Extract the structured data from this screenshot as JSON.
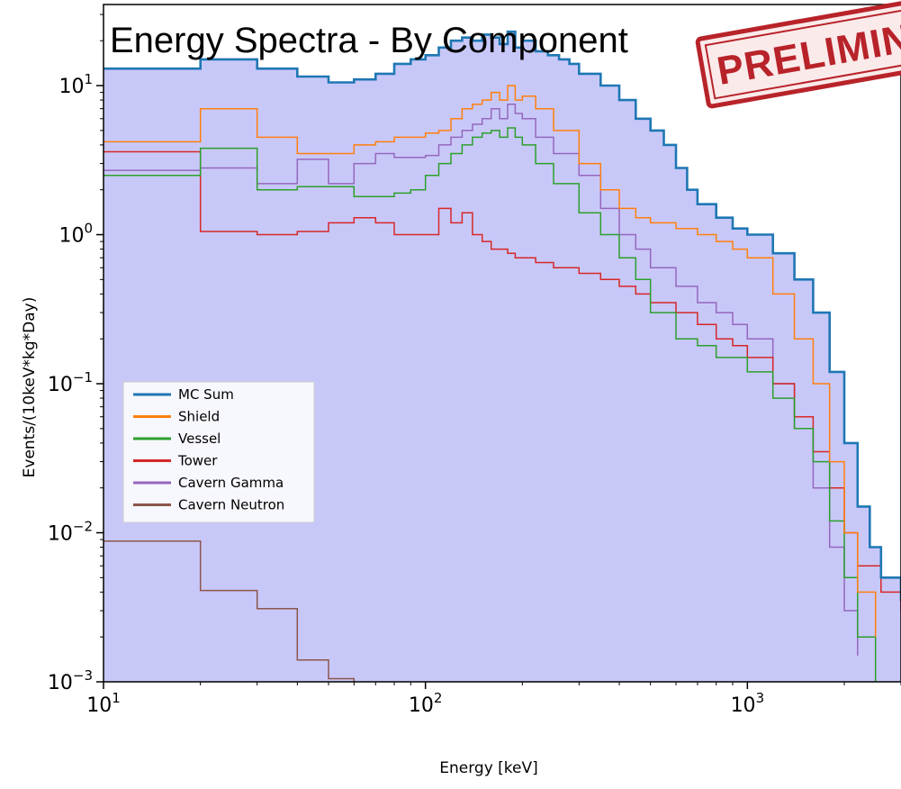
{
  "chart_data": {
    "type": "line",
    "title": "Energy Spectra - By Component",
    "stamp": "PRELIMINARY",
    "xlabel": "Energy [keV]",
    "ylabel": "Events/(10keV*kg*Day)",
    "x_scale": "log",
    "y_scale": "log",
    "xlim": [
      10,
      3000
    ],
    "ylim": [
      0.001,
      35
    ],
    "x_ticks": [
      {
        "value": 10,
        "base": "10",
        "exp": "1"
      },
      {
        "value": 100,
        "base": "10",
        "exp": "2"
      },
      {
        "value": 1000,
        "base": "10",
        "exp": "3"
      }
    ],
    "y_ticks": [
      {
        "value": 10,
        "base": "10",
        "exp": "1"
      },
      {
        "value": 1,
        "base": "10",
        "exp": "0"
      },
      {
        "value": 0.1,
        "base": "10",
        "exp": "−1"
      },
      {
        "value": 0.01,
        "base": "10",
        "exp": "−2"
      },
      {
        "value": 0.001,
        "base": "10",
        "exp": "−3"
      }
    ],
    "grid": false,
    "legend_position": "center-left",
    "fill_color": "#c8c8f8",
    "series": [
      {
        "name": "MC Sum",
        "color": "#1f77b4",
        "points": [
          [
            10,
            13
          ],
          [
            20,
            15
          ],
          [
            30,
            13
          ],
          [
            40,
            11.5
          ],
          [
            50,
            10.5
          ],
          [
            60,
            11
          ],
          [
            70,
            12
          ],
          [
            80,
            14
          ],
          [
            90,
            15
          ],
          [
            100,
            16
          ],
          [
            110,
            18
          ],
          [
            120,
            20
          ],
          [
            130,
            21
          ],
          [
            140,
            20
          ],
          [
            150,
            22
          ],
          [
            160,
            21
          ],
          [
            170,
            19
          ],
          [
            180,
            23
          ],
          [
            190,
            18
          ],
          [
            200,
            20
          ],
          [
            220,
            17
          ],
          [
            240,
            16
          ],
          [
            260,
            15
          ],
          [
            280,
            14
          ],
          [
            300,
            12
          ],
          [
            350,
            10
          ],
          [
            400,
            8
          ],
          [
            450,
            6
          ],
          [
            500,
            5
          ],
          [
            550,
            4
          ],
          [
            600,
            2.8
          ],
          [
            650,
            2
          ],
          [
            700,
            1.6
          ],
          [
            800,
            1.3
          ],
          [
            900,
            1.1
          ],
          [
            1000,
            1.0
          ],
          [
            1200,
            0.75
          ],
          [
            1400,
            0.5
          ],
          [
            1600,
            0.3
          ],
          [
            1800,
            0.12
          ],
          [
            2000,
            0.04
          ],
          [
            2200,
            0.015
          ],
          [
            2400,
            0.008
          ],
          [
            2600,
            0.005
          ],
          [
            3000,
            0.0035
          ]
        ]
      },
      {
        "name": "Shield",
        "color": "#ff7f0e",
        "points": [
          [
            10,
            4.2
          ],
          [
            20,
            7
          ],
          [
            30,
            4.5
          ],
          [
            40,
            3.5
          ],
          [
            50,
            3.5
          ],
          [
            60,
            4
          ],
          [
            70,
            4.2
          ],
          [
            80,
            4.5
          ],
          [
            90,
            4.5
          ],
          [
            100,
            4.8
          ],
          [
            110,
            5
          ],
          [
            120,
            6
          ],
          [
            130,
            7
          ],
          [
            140,
            7.5
          ],
          [
            150,
            8
          ],
          [
            160,
            9
          ],
          [
            170,
            8
          ],
          [
            180,
            10
          ],
          [
            190,
            8
          ],
          [
            200,
            8.5
          ],
          [
            220,
            7
          ],
          [
            250,
            5
          ],
          [
            300,
            3
          ],
          [
            350,
            2
          ],
          [
            400,
            1.5
          ],
          [
            450,
            1.3
          ],
          [
            500,
            1.2
          ],
          [
            600,
            1.1
          ],
          [
            700,
            1.0
          ],
          [
            800,
            0.9
          ],
          [
            900,
            0.8
          ],
          [
            1000,
            0.7
          ],
          [
            1200,
            0.4
          ],
          [
            1400,
            0.2
          ],
          [
            1600,
            0.1
          ],
          [
            1800,
            0.03
          ],
          [
            2000,
            0.01
          ],
          [
            2200,
            0.004
          ],
          [
            2500,
            0.002
          ]
        ]
      },
      {
        "name": "Vessel",
        "color": "#2ca02c",
        "points": [
          [
            10,
            2.5
          ],
          [
            20,
            3.8
          ],
          [
            30,
            2.0
          ],
          [
            40,
            2.1
          ],
          [
            50,
            2.1
          ],
          [
            60,
            1.8
          ],
          [
            70,
            1.8
          ],
          [
            80,
            1.9
          ],
          [
            90,
            2.0
          ],
          [
            100,
            2.5
          ],
          [
            110,
            3
          ],
          [
            120,
            3.5
          ],
          [
            130,
            4
          ],
          [
            140,
            4.5
          ],
          [
            150,
            4.8
          ],
          [
            160,
            5
          ],
          [
            170,
            4.5
          ],
          [
            180,
            5.2
          ],
          [
            190,
            4.5
          ],
          [
            200,
            4
          ],
          [
            220,
            3
          ],
          [
            250,
            2.2
          ],
          [
            300,
            1.4
          ],
          [
            350,
            1.0
          ],
          [
            400,
            0.7
          ],
          [
            450,
            0.5
          ],
          [
            500,
            0.3
          ],
          [
            600,
            0.2
          ],
          [
            700,
            0.18
          ],
          [
            800,
            0.15
          ],
          [
            1000,
            0.12
          ],
          [
            1200,
            0.08
          ],
          [
            1400,
            0.05
          ],
          [
            1600,
            0.03
          ],
          [
            1800,
            0.012
          ],
          [
            2000,
            0.005
          ],
          [
            2200,
            0.002
          ],
          [
            2500,
            0.001
          ]
        ]
      },
      {
        "name": "Tower",
        "color": "#d62728",
        "points": [
          [
            10,
            3.6
          ],
          [
            20,
            1.05
          ],
          [
            30,
            1.0
          ],
          [
            40,
            1.05
          ],
          [
            50,
            1.2
          ],
          [
            60,
            1.3
          ],
          [
            70,
            1.2
          ],
          [
            80,
            1.0
          ],
          [
            90,
            1.0
          ],
          [
            100,
            1.0
          ],
          [
            110,
            1.5
          ],
          [
            120,
            1.2
          ],
          [
            130,
            1.4
          ],
          [
            140,
            1.0
          ],
          [
            150,
            0.9
          ],
          [
            160,
            0.8
          ],
          [
            170,
            0.8
          ],
          [
            180,
            0.75
          ],
          [
            190,
            0.7
          ],
          [
            200,
            0.7
          ],
          [
            220,
            0.65
          ],
          [
            250,
            0.6
          ],
          [
            300,
            0.55
          ],
          [
            350,
            0.5
          ],
          [
            400,
            0.45
          ],
          [
            450,
            0.4
          ],
          [
            500,
            0.35
          ],
          [
            600,
            0.3
          ],
          [
            700,
            0.25
          ],
          [
            800,
            0.2
          ],
          [
            900,
            0.18
          ],
          [
            1000,
            0.15
          ],
          [
            1200,
            0.1
          ],
          [
            1400,
            0.06
          ],
          [
            1600,
            0.035
          ],
          [
            1800,
            0.02
          ],
          [
            2000,
            0.01
          ],
          [
            2200,
            0.006
          ],
          [
            2600,
            0.004
          ],
          [
            3000,
            0.003
          ]
        ]
      },
      {
        "name": "Cavern Gamma",
        "color": "#9467bd",
        "points": [
          [
            10,
            2.7
          ],
          [
            20,
            2.8
          ],
          [
            30,
            2.2
          ],
          [
            40,
            3.2
          ],
          [
            50,
            2.2
          ],
          [
            60,
            3.0
          ],
          [
            70,
            3.5
          ],
          [
            80,
            3.3
          ],
          [
            90,
            3.3
          ],
          [
            100,
            3.4
          ],
          [
            110,
            4
          ],
          [
            120,
            4.5
          ],
          [
            130,
            5
          ],
          [
            140,
            5.5
          ],
          [
            150,
            6
          ],
          [
            160,
            7
          ],
          [
            170,
            6
          ],
          [
            180,
            7.5
          ],
          [
            190,
            6.5
          ],
          [
            200,
            6
          ],
          [
            220,
            4.5
          ],
          [
            250,
            3.5
          ],
          [
            300,
            2.5
          ],
          [
            350,
            1.5
          ],
          [
            400,
            1.0
          ],
          [
            450,
            0.8
          ],
          [
            500,
            0.6
          ],
          [
            600,
            0.45
          ],
          [
            700,
            0.35
          ],
          [
            800,
            0.3
          ],
          [
            900,
            0.25
          ],
          [
            1000,
            0.2
          ],
          [
            1200,
            0.1
          ],
          [
            1400,
            0.05
          ],
          [
            1600,
            0.02
          ],
          [
            1800,
            0.008
          ],
          [
            2000,
            0.003
          ],
          [
            2200,
            0.0015
          ]
        ]
      },
      {
        "name": "Cavern Neutron",
        "color": "#8c564b",
        "points": [
          [
            10,
            0.0088
          ],
          [
            20,
            0.0088
          ],
          [
            20,
            0.0041
          ],
          [
            30,
            0.0041
          ],
          [
            30,
            0.0031
          ],
          [
            40,
            0.0031
          ],
          [
            40,
            0.0014
          ],
          [
            50,
            0.0014
          ],
          [
            50,
            0.00105
          ],
          [
            60,
            0.00105
          ],
          [
            60,
            0.001
          ]
        ]
      }
    ]
  }
}
